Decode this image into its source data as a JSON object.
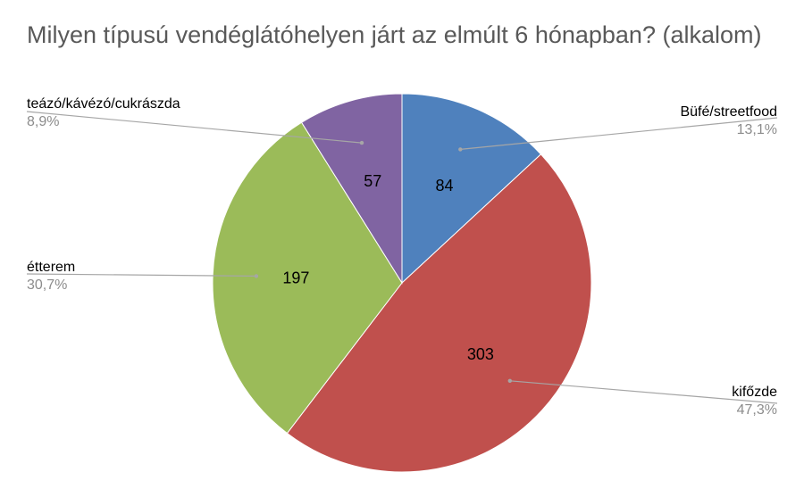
{
  "chart_data": {
    "type": "pie",
    "title": "Milyen típusú vendéglátóhelyen járt az elmúlt 6 hónapban? (alkalom)",
    "slices": [
      {
        "name": "Büfé/streetfood",
        "value": 84,
        "percent": "13,1%",
        "color": "#4f81bd"
      },
      {
        "name": "kifőzde",
        "value": 303,
        "percent": "47,3%",
        "color": "#c0504d"
      },
      {
        "name": "étterem",
        "value": 197,
        "percent": "30,7%",
        "color": "#9bbb59"
      },
      {
        "name": "teázó/kávézó/cukrászda",
        "value": 57,
        "percent": "8,9%",
        "color": "#8064a2"
      }
    ],
    "legend": "callouts",
    "start_angle": "12 o'clock",
    "direction": "clockwise"
  }
}
